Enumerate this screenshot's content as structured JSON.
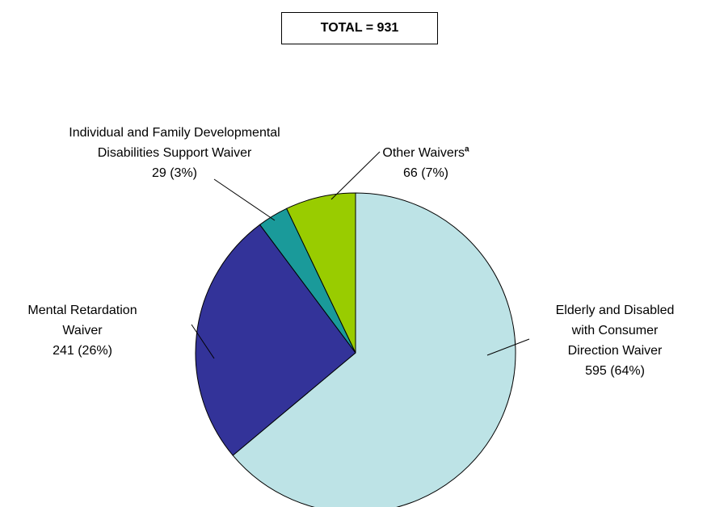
{
  "chart_data": {
    "type": "pie",
    "title": "TOTAL = 931",
    "categories": [
      "Elderly and Disabled with Consumer Direction Waiver",
      "Mental Retardation Waiver",
      "Individual and Family Developmental Disabilities Support Waiver",
      "Other Waivers"
    ],
    "label_notes": [
      null,
      null,
      null,
      "a"
    ],
    "values": [
      595,
      241,
      29,
      66
    ],
    "value_labels": [
      "595 (64%)",
      "241 (26%)",
      "29 (3%)",
      "66 (7%)"
    ],
    "colors": [
      "#bde3e6",
      "#333399",
      "#1a9a9a",
      "#99cc00"
    ]
  }
}
